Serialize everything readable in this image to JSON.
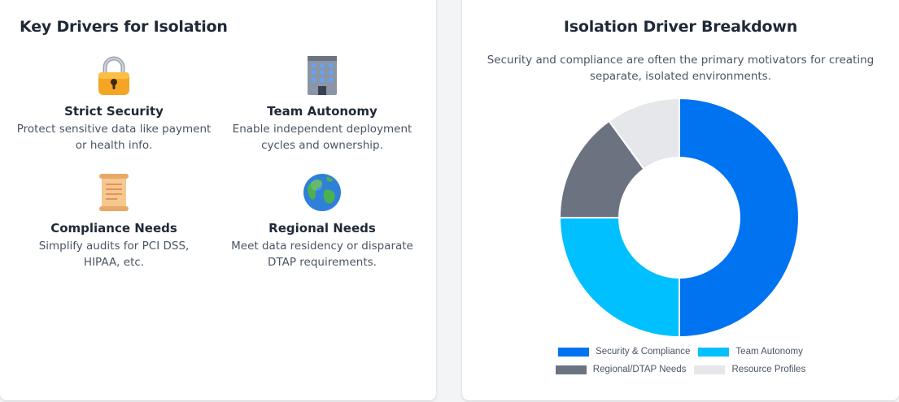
{
  "left": {
    "title": "Key Drivers for Isolation",
    "drivers": [
      {
        "icon": "lock-icon",
        "title": "Strict Security",
        "desc_lines": [
          "Protect sensitive data like payment",
          "or health info."
        ]
      },
      {
        "icon": "office-building-icon",
        "title": "Team Autonomy",
        "desc_lines": [
          "Enable independent deployment",
          "cycles and ownership."
        ]
      },
      {
        "icon": "scroll-icon",
        "title": "Compliance Needs",
        "desc_lines": [
          "Simplify audits for PCI DSS,",
          "HIPAA, etc."
        ]
      },
      {
        "icon": "globe-icon",
        "title": "Regional Needs",
        "desc_lines": [
          "Meet data residency or disparate",
          "DTAP requirements."
        ]
      }
    ]
  },
  "right": {
    "title": "Isolation Driver Breakdown",
    "subtitle_lines": [
      "Security and compliance are often the primary motivators for creating",
      "separate, isolated environments."
    ]
  },
  "chart_data": {
    "type": "doughnut",
    "title": "Isolation Driver Breakdown",
    "categories": [
      "Security & Compliance",
      "Team Autonomy",
      "Regional/DTAP Needs",
      "Resource Profiles"
    ],
    "values": [
      50,
      25,
      15,
      10
    ],
    "colors": [
      "#0073f0",
      "#00c0ff",
      "#6b7280",
      "#e5e7eb"
    ],
    "legend_position": "bottom"
  }
}
